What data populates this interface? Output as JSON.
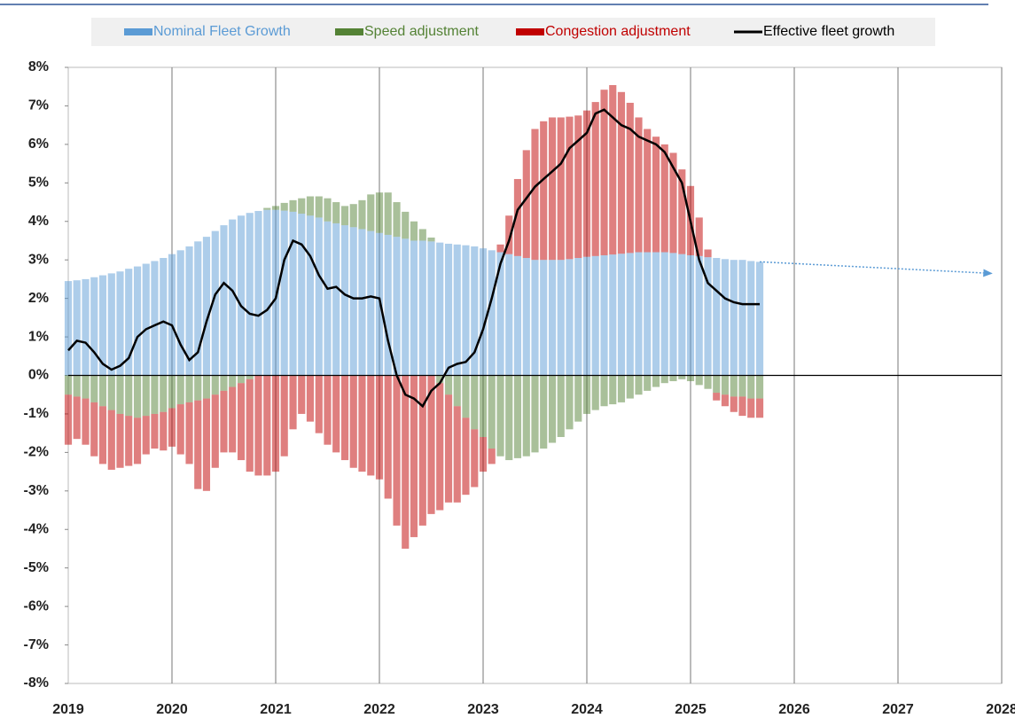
{
  "chart_data": {
    "type": "bar",
    "stacked": true,
    "grid": true,
    "x": [
      2019,
      2019.083,
      2019.167,
      2019.25,
      2019.333,
      2019.417,
      2019.5,
      2019.583,
      2019.667,
      2019.75,
      2019.833,
      2019.917,
      2020,
      2020.083,
      2020.167,
      2020.25,
      2020.333,
      2020.417,
      2020.5,
      2020.583,
      2020.667,
      2020.75,
      2020.833,
      2020.917,
      2021,
      2021.083,
      2021.167,
      2021.25,
      2021.333,
      2021.417,
      2021.5,
      2021.583,
      2021.667,
      2021.75,
      2021.833,
      2021.917,
      2022,
      2022.083,
      2022.167,
      2022.25,
      2022.333,
      2022.417,
      2022.5,
      2022.583,
      2022.667,
      2022.75,
      2022.833,
      2022.917,
      2023,
      2023.083,
      2023.167,
      2023.25,
      2023.333,
      2023.417,
      2023.5,
      2023.583,
      2023.667,
      2023.75,
      2023.833,
      2023.917,
      2024,
      2024.083,
      2024.167,
      2024.25,
      2024.333,
      2024.417,
      2024.5,
      2024.583,
      2024.667,
      2024.75,
      2024.833,
      2024.917,
      2025,
      2025.083,
      2025.167,
      2025.25,
      2025.333,
      2025.417,
      2025.5,
      2025.583,
      2025.667
    ],
    "series": [
      {
        "name": "Nominal Fleet Growth",
        "color": "#5b9bd5",
        "values": [
          2.45,
          2.47,
          2.5,
          2.55,
          2.6,
          2.65,
          2.7,
          2.77,
          2.83,
          2.9,
          2.97,
          3.05,
          3.15,
          3.25,
          3.35,
          3.48,
          3.6,
          3.75,
          3.9,
          4.05,
          4.15,
          4.22,
          4.27,
          4.3,
          4.3,
          4.28,
          4.25,
          4.2,
          4.15,
          4.1,
          4.0,
          3.95,
          3.9,
          3.85,
          3.8,
          3.75,
          3.7,
          3.65,
          3.6,
          3.55,
          3.5,
          3.5,
          3.48,
          3.45,
          3.42,
          3.4,
          3.38,
          3.35,
          3.3,
          3.25,
          3.2,
          3.15,
          3.1,
          3.05,
          3.0,
          3.0,
          3.0,
          3.0,
          3.02,
          3.05,
          3.08,
          3.1,
          3.12,
          3.14,
          3.16,
          3.18,
          3.2,
          3.2,
          3.2,
          3.2,
          3.18,
          3.15,
          3.12,
          3.1,
          3.07,
          3.05,
          3.02,
          3.0,
          3.0,
          2.97,
          2.95
        ]
      },
      {
        "name": "Speed adjustment",
        "color": "#548235",
        "values": [
          -0.5,
          -0.55,
          -0.6,
          -0.7,
          -0.8,
          -0.9,
          -1.0,
          -1.05,
          -1.1,
          -1.05,
          -1.0,
          -0.95,
          -0.85,
          -0.75,
          -0.7,
          -0.65,
          -0.6,
          -0.5,
          -0.4,
          -0.3,
          -0.2,
          -0.1,
          0,
          0.05,
          0.1,
          0.2,
          0.3,
          0.4,
          0.5,
          0.55,
          0.6,
          0.55,
          0.5,
          0.6,
          0.75,
          0.95,
          1.05,
          1.1,
          0.9,
          0.7,
          0.5,
          0.3,
          0.1,
          -0.2,
          -0.5,
          -0.8,
          -1.1,
          -1.4,
          -1.6,
          -1.9,
          -2.1,
          -2.2,
          -2.15,
          -2.1,
          -2.0,
          -1.9,
          -1.75,
          -1.6,
          -1.4,
          -1.2,
          -1.0,
          -0.9,
          -0.8,
          -0.75,
          -0.7,
          -0.6,
          -0.5,
          -0.4,
          -0.3,
          -0.2,
          -0.15,
          -0.1,
          -0.15,
          -0.25,
          -0.35,
          -0.45,
          -0.5,
          -0.55,
          -0.55,
          -0.6,
          -0.6
        ]
      },
      {
        "name": "Congestion adjustment",
        "color": "#c00000",
        "values": [
          -1.3,
          -1.1,
          -1.2,
          -1.4,
          -1.5,
          -1.55,
          -1.4,
          -1.3,
          -1.2,
          -1.0,
          -0.9,
          -1.0,
          -1.0,
          -1.3,
          -1.6,
          -2.3,
          -2.4,
          -1.9,
          -1.6,
          -1.7,
          -2.0,
          -2.4,
          -2.6,
          -2.6,
          -2.5,
          -2.1,
          -1.4,
          -1.0,
          -1.2,
          -1.5,
          -1.8,
          -2.0,
          -2.2,
          -2.4,
          -2.5,
          -2.6,
          -2.7,
          -3.2,
          -3.9,
          -4.5,
          -4.2,
          -3.9,
          -3.6,
          -3.3,
          -2.8,
          -2.5,
          -2.0,
          -1.5,
          -0.9,
          -0.4,
          0.2,
          1.0,
          2.0,
          2.8,
          3.4,
          3.6,
          3.7,
          3.7,
          3.7,
          3.7,
          3.8,
          4.0,
          4.3,
          4.4,
          4.2,
          3.9,
          3.5,
          3.2,
          3.0,
          2.8,
          2.6,
          2.2,
          1.8,
          1.0,
          0.2,
          -0.2,
          -0.3,
          -0.4,
          -0.5,
          -0.5,
          -0.5
        ]
      },
      {
        "name": "Effective fleet growth",
        "color": "#000000",
        "type": "line",
        "values": [
          0.65,
          0.9,
          0.85,
          0.6,
          0.3,
          0.15,
          0.25,
          0.45,
          1.0,
          1.2,
          1.3,
          1.4,
          1.3,
          0.8,
          0.4,
          0.6,
          1.4,
          2.1,
          2.4,
          2.2,
          1.8,
          1.6,
          1.55,
          1.7,
          2.0,
          3.0,
          3.5,
          3.4,
          3.1,
          2.6,
          2.25,
          2.3,
          2.1,
          2.0,
          2.0,
          2.05,
          2.0,
          0.9,
          0.0,
          -0.5,
          -0.6,
          -0.8,
          -0.4,
          -0.2,
          0.2,
          0.3,
          0.35,
          0.6,
          1.2,
          2.0,
          2.9,
          3.5,
          4.3,
          4.6,
          4.9,
          5.1,
          5.3,
          5.5,
          5.9,
          6.1,
          6.3,
          6.8,
          6.9,
          6.7,
          6.5,
          6.4,
          6.2,
          6.1,
          6.0,
          5.8,
          5.4,
          5.0,
          4.0,
          3.0,
          2.4,
          2.2,
          2.0,
          1.9,
          1.85,
          1.85,
          1.85
        ]
      }
    ],
    "projection": {
      "color": "#5b9bd5",
      "x": [
        2025.667,
        2027.9
      ],
      "values": [
        2.95,
        2.65
      ]
    },
    "xlim": [
      2019,
      2028
    ],
    "xticks": [
      2019,
      2020,
      2021,
      2022,
      2023,
      2024,
      2025,
      2026,
      2027,
      2028
    ],
    "ylim": [
      -8,
      8
    ],
    "yticks": [
      {
        "value": -8,
        "label": "-8%"
      },
      {
        "value": -7,
        "label": "-7%"
      },
      {
        "value": -6,
        "label": "-6%"
      },
      {
        "value": -5,
        "label": "-5%"
      },
      {
        "value": -4,
        "label": "-4%"
      },
      {
        "value": -3,
        "label": "-3%"
      },
      {
        "value": -2,
        "label": "-2%"
      },
      {
        "value": -1,
        "label": "-1%"
      },
      {
        "value": 0,
        "label": "0%"
      },
      {
        "value": 1,
        "label": "1%"
      },
      {
        "value": 2,
        "label": "2%"
      },
      {
        "value": 3,
        "label": "3%"
      },
      {
        "value": 4,
        "label": "4%"
      },
      {
        "value": 5,
        "label": "5%"
      },
      {
        "value": 6,
        "label": "6%"
      },
      {
        "value": 7,
        "label": "7%"
      },
      {
        "value": 8,
        "label": "8%"
      }
    ]
  }
}
